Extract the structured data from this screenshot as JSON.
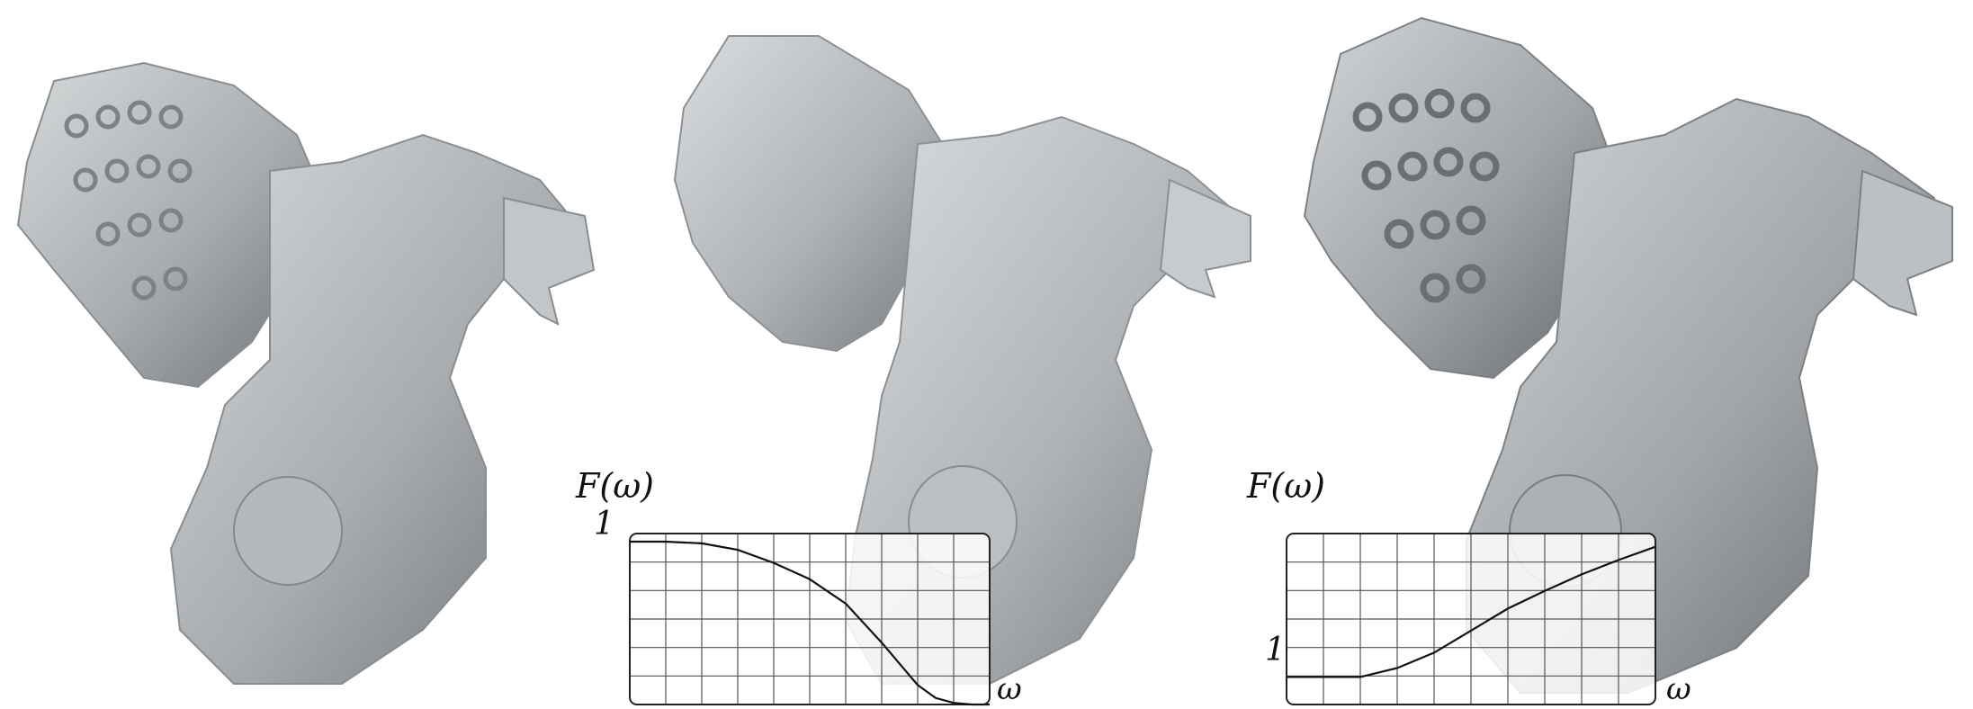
{
  "figure": {
    "panels": [
      {
        "id": "original",
        "content": "gargoyle-mesh-original"
      },
      {
        "id": "smoothed",
        "content": "gargoyle-mesh-smoothed"
      },
      {
        "id": "enhanced",
        "content": "gargoyle-mesh-enhanced"
      }
    ]
  },
  "chart_data": [
    {
      "type": "line",
      "title": "",
      "ylabel": "F(ω)",
      "xlabel": "ω",
      "ytick_label": "1",
      "ytick_value": 1,
      "xlim": [
        0,
        1
      ],
      "ylim": [
        0,
        1.05
      ],
      "grid": true,
      "grid_cols": 10,
      "grid_rows": 6,
      "series": [
        {
          "x": [
            0,
            0.1,
            0.2,
            0.3,
            0.4,
            0.5,
            0.6,
            0.7,
            0.75,
            0.8,
            0.85,
            0.9,
            0.95,
            1.0
          ],
          "y": [
            1.0,
            1.0,
            0.99,
            0.95,
            0.87,
            0.77,
            0.62,
            0.38,
            0.25,
            0.12,
            0.04,
            0.01,
            0.0,
            0.0
          ]
        }
      ]
    },
    {
      "type": "line",
      "title": "",
      "ylabel": "F(ω)",
      "xlabel": "ω",
      "ytick_label": "1",
      "ytick_value": 1,
      "xlim": [
        0,
        1
      ],
      "ylim": [
        0.75,
        2.3
      ],
      "grid": true,
      "grid_cols": 10,
      "grid_rows": 6,
      "series": [
        {
          "x": [
            0,
            0.1,
            0.2,
            0.3,
            0.4,
            0.5,
            0.6,
            0.7,
            0.8,
            0.9,
            1.0
          ],
          "y": [
            1.0,
            1.0,
            1.0,
            1.08,
            1.22,
            1.42,
            1.62,
            1.78,
            1.93,
            2.06,
            2.18
          ]
        }
      ]
    }
  ]
}
